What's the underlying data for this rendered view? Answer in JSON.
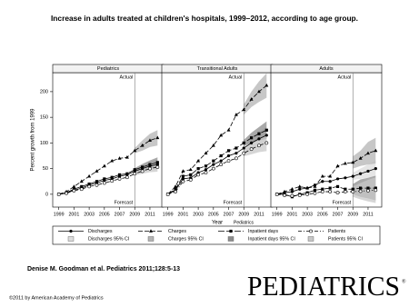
{
  "header": {
    "title": "Increase in adults treated at children's hospitals, 1999–2012, according to age group.",
    "citation": "Denise M. Goodman et al. Pediatrics 2011;128:5-13",
    "copyright": "©2011 by American Academy of Pediatrics",
    "logo": "PEDIATRICS",
    "watermark": "Pediatrics"
  },
  "chart_data": [
    {
      "type": "line",
      "title": "Pediatrics",
      "ylabel": "Percent growth from 1999",
      "actual_label": "Actual",
      "forecast_label": "Forecast",
      "forecast_start": 2009,
      "x": [
        1999,
        2000,
        2001,
        2002,
        2003,
        2004,
        2005,
        2006,
        2007,
        2008,
        2009,
        2010,
        2011,
        2012
      ],
      "xlim": [
        1998.2,
        2012.8
      ],
      "xticks": [
        1999,
        2001,
        2003,
        2005,
        2007,
        2009,
        2011
      ],
      "ylim": [
        -25,
        237
      ],
      "yticks": [
        0,
        50,
        100,
        150,
        200
      ],
      "series": [
        {
          "name": "Discharges",
          "ci_name": "Discharges 95% CI",
          "color": "#000000",
          "ci_color": "#dcdcdc",
          "marker": "circle",
          "dash": "none",
          "values": [
            0,
            2,
            8,
            12,
            18,
            22,
            27,
            30,
            35,
            38,
            45,
            50,
            55,
            58
          ],
          "ci_lower": [
            null,
            null,
            null,
            null,
            null,
            null,
            null,
            null,
            null,
            null,
            42,
            45,
            47,
            48
          ],
          "ci_upper": [
            null,
            null,
            null,
            null,
            null,
            null,
            null,
            null,
            null,
            null,
            48,
            55,
            63,
            68
          ]
        },
        {
          "name": "Charges",
          "ci_name": "Charges 95% CI",
          "color": "#000000",
          "ci_color": "#b4b4b4",
          "marker": "triangle",
          "dash": "5,2",
          "values": [
            0,
            5,
            15,
            25,
            35,
            45,
            55,
            65,
            70,
            72,
            85,
            95,
            105,
            110
          ],
          "ci_lower": [
            null,
            null,
            null,
            null,
            null,
            null,
            null,
            null,
            null,
            null,
            80,
            85,
            92,
            95
          ],
          "ci_upper": [
            null,
            null,
            null,
            null,
            null,
            null,
            null,
            null,
            null,
            null,
            90,
            105,
            118,
            125
          ]
        },
        {
          "name": "Inpatient days",
          "ci_name": "Inpatient days 95% CI",
          "color": "#000000",
          "ci_color": "#8c8c8c",
          "marker": "square",
          "dash": "7,2",
          "values": [
            0,
            3,
            10,
            15,
            20,
            25,
            30,
            33,
            38,
            40,
            48,
            53,
            58,
            62
          ],
          "ci_lower": [
            null,
            null,
            null,
            null,
            null,
            null,
            null,
            null,
            null,
            null,
            45,
            47,
            50,
            52
          ],
          "ci_upper": [
            null,
            null,
            null,
            null,
            null,
            null,
            null,
            null,
            null,
            null,
            51,
            59,
            66,
            72
          ]
        },
        {
          "name": "Patients",
          "ci_name": "Patients 95% CI",
          "color": "#000000",
          "ci_color": "#c8c8c8",
          "marker": "open-circle",
          "dash": "4,2,1,2",
          "values": [
            0,
            2,
            7,
            10,
            15,
            18,
            22,
            26,
            30,
            33,
            40,
            45,
            50,
            53
          ],
          "ci_lower": [
            null,
            null,
            null,
            null,
            null,
            null,
            null,
            null,
            null,
            null,
            37,
            40,
            43,
            44
          ],
          "ci_upper": [
            null,
            null,
            null,
            null,
            null,
            null,
            null,
            null,
            null,
            null,
            43,
            50,
            57,
            62
          ]
        }
      ]
    },
    {
      "type": "line",
      "title": "Transitional Adults",
      "xlabel": "Year",
      "actual_label": "Actual",
      "forecast_label": "Forecast",
      "forecast_start": 2009,
      "x": [
        1999,
        2000,
        2001,
        2002,
        2003,
        2004,
        2005,
        2006,
        2007,
        2008,
        2009,
        2010,
        2011,
        2012
      ],
      "xlim": [
        1998.2,
        2012.8
      ],
      "xticks": [
        1999,
        2001,
        2003,
        2005,
        2007,
        2009,
        2011
      ],
      "ylim": [
        -25,
        237
      ],
      "series": [
        {
          "color": "#000000",
          "ci_color": "#dcdcdc",
          "marker": "circle",
          "dash": "none",
          "values": [
            0,
            8,
            30,
            32,
            42,
            48,
            58,
            65,
            75,
            80,
            90,
            100,
            108,
            115
          ],
          "ci_lower": [
            null,
            null,
            null,
            null,
            null,
            null,
            null,
            null,
            null,
            null,
            84,
            90,
            95,
            98
          ],
          "ci_upper": [
            null,
            null,
            null,
            null,
            null,
            null,
            null,
            null,
            null,
            null,
            96,
            110,
            121,
            132
          ]
        },
        {
          "color": "#000000",
          "ci_color": "#b4b4b4",
          "marker": "triangle",
          "dash": "5,2",
          "values": [
            0,
            15,
            45,
            48,
            65,
            80,
            95,
            115,
            125,
            155,
            165,
            185,
            200,
            212
          ],
          "ci_lower": [
            null,
            null,
            null,
            null,
            null,
            null,
            null,
            null,
            null,
            null,
            155,
            170,
            180,
            188
          ],
          "ci_upper": [
            null,
            null,
            null,
            null,
            null,
            null,
            null,
            null,
            null,
            null,
            175,
            200,
            220,
            236
          ]
        },
        {
          "color": "#000000",
          "ci_color": "#8c8c8c",
          "marker": "square",
          "dash": "7,2",
          "values": [
            0,
            10,
            35,
            38,
            50,
            55,
            65,
            75,
            85,
            90,
            100,
            110,
            118,
            125
          ],
          "ci_lower": [
            null,
            null,
            null,
            null,
            null,
            null,
            null,
            null,
            null,
            null,
            94,
            100,
            105,
            108
          ],
          "ci_upper": [
            null,
            null,
            null,
            null,
            null,
            null,
            null,
            null,
            null,
            null,
            106,
            120,
            131,
            142
          ]
        },
        {
          "color": "#000000",
          "ci_color": "#c8c8c8",
          "marker": "open-circle",
          "dash": "4,2,1,2",
          "values": [
            0,
            5,
            25,
            28,
            38,
            42,
            50,
            58,
            65,
            70,
            80,
            88,
            95,
            100
          ],
          "ci_lower": [
            null,
            null,
            null,
            null,
            null,
            null,
            null,
            null,
            null,
            null,
            74,
            78,
            82,
            84
          ],
          "ci_upper": [
            null,
            null,
            null,
            null,
            null,
            null,
            null,
            null,
            null,
            null,
            86,
            98,
            108,
            116
          ]
        }
      ]
    },
    {
      "type": "line",
      "title": "Adults",
      "actual_label": "Actual",
      "forecast_label": "Forecast",
      "forecast_start": 2009,
      "x": [
        1999,
        2000,
        2001,
        2002,
        2003,
        2004,
        2005,
        2006,
        2007,
        2008,
        2009,
        2010,
        2011,
        2012
      ],
      "xlim": [
        1998.2,
        2012.8
      ],
      "xticks": [
        1999,
        2001,
        2003,
        2005,
        2007,
        2009,
        2011
      ],
      "ylim": [
        -25,
        237
      ],
      "series": [
        {
          "color": "#000000",
          "ci_color": "#dcdcdc",
          "marker": "circle",
          "dash": "none",
          "values": [
            0,
            3,
            5,
            10,
            12,
            18,
            25,
            25,
            30,
            32,
            35,
            40,
            45,
            50
          ],
          "ci_lower": [
            null,
            null,
            null,
            null,
            null,
            null,
            null,
            null,
            null,
            null,
            28,
            30,
            32,
            34
          ],
          "ci_upper": [
            null,
            null,
            null,
            null,
            null,
            null,
            null,
            null,
            null,
            null,
            42,
            50,
            58,
            66
          ]
        },
        {
          "color": "#000000",
          "ci_color": "#b4b4b4",
          "marker": "triangle",
          "dash": "5,2",
          "values": [
            0,
            5,
            10,
            15,
            12,
            15,
            35,
            35,
            55,
            60,
            62,
            70,
            80,
            85
          ],
          "ci_lower": [
            null,
            null,
            null,
            null,
            null,
            null,
            null,
            null,
            null,
            null,
            50,
            55,
            58,
            60
          ],
          "ci_upper": [
            null,
            null,
            null,
            null,
            null,
            null,
            null,
            null,
            null,
            null,
            74,
            85,
            102,
            110
          ]
        },
        {
          "color": "#000000",
          "ci_color": "#8c8c8c",
          "marker": "square",
          "dash": "7,2",
          "values": [
            0,
            0,
            -5,
            0,
            3,
            8,
            10,
            12,
            15,
            10,
            10,
            12,
            12,
            12
          ],
          "ci_lower": [
            null,
            null,
            null,
            null,
            null,
            null,
            null,
            null,
            null,
            null,
            0,
            -5,
            -8,
            -12
          ],
          "ci_upper": [
            null,
            null,
            null,
            null,
            null,
            null,
            null,
            null,
            null,
            null,
            20,
            29,
            32,
            36
          ]
        },
        {
          "color": "#000000",
          "ci_color": "#c8c8c8",
          "marker": "open-circle",
          "dash": "4,2,1,2",
          "values": [
            0,
            -2,
            -3,
            -2,
            0,
            2,
            5,
            5,
            3,
            5,
            5,
            6,
            7,
            8
          ],
          "ci_lower": [
            null,
            null,
            null,
            null,
            null,
            null,
            null,
            null,
            null,
            null,
            -5,
            -10,
            -14,
            -17
          ],
          "ci_upper": [
            null,
            null,
            null,
            null,
            null,
            null,
            null,
            null,
            null,
            null,
            15,
            22,
            28,
            33
          ]
        }
      ]
    }
  ]
}
